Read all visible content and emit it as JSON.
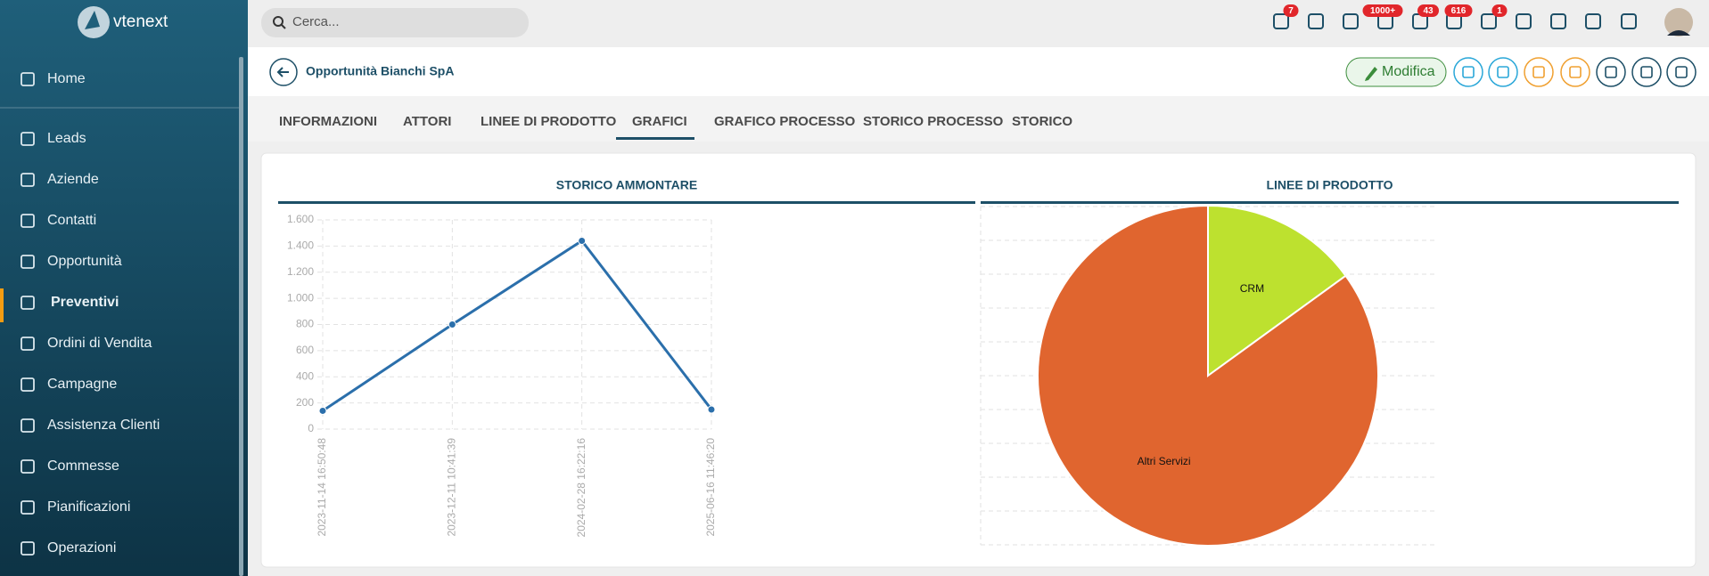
{
  "brand": "vtenext",
  "search_placeholder": "Cerca...",
  "badges": [
    "7",
    "1000+",
    "43",
    "616",
    "1"
  ],
  "sidebar": [
    "Home",
    "Leads",
    "Aziende",
    "Contatti",
    "Opportunità",
    "Preventivi",
    "Ordini di Vendita",
    "Campagne",
    "Assistenza Clienti",
    "Commesse",
    "Pianificazioni",
    "Operazioni"
  ],
  "record_title": "Opportunità Bianchi SpA",
  "edit_button": "Modifica",
  "tabs": [
    "INFORMAZIONI",
    "ATTORI",
    "LINEE DI PRODOTTO",
    "GRAFICI",
    "GRAFICO PROCESSO",
    "STORICO PROCESSO",
    "STORICO"
  ],
  "chart_data": [
    {
      "type": "line",
      "title": "STORICO AMMONTARE",
      "categories": [
        "2023-11-14 16:50:48",
        "2023-12-11 10:41:39",
        "2024-02-28 16:22:16",
        "2025-06-16 11:46:20"
      ],
      "values": [
        140,
        800,
        1440,
        150
      ],
      "color": "#2b6fab",
      "ylim": [
        0,
        1600
      ],
      "yticks": [
        0,
        200,
        400,
        600,
        800,
        {
          "value": 1000,
          "label": "1.000"
        },
        {
          "value": 1200,
          "label": "1.200"
        },
        {
          "value": 1400,
          "label": "1.400"
        },
        {
          "value": 1600,
          "label": "1.600"
        }
      ],
      "grid": true
    },
    {
      "type": "pie",
      "title": "LINEE DI PRODOTTO",
      "categories": [
        "CRM",
        "Altri Servizi"
      ],
      "values": [
        15,
        85
      ],
      "colors": [
        "#bde12f",
        "#e0652f"
      ]
    }
  ]
}
